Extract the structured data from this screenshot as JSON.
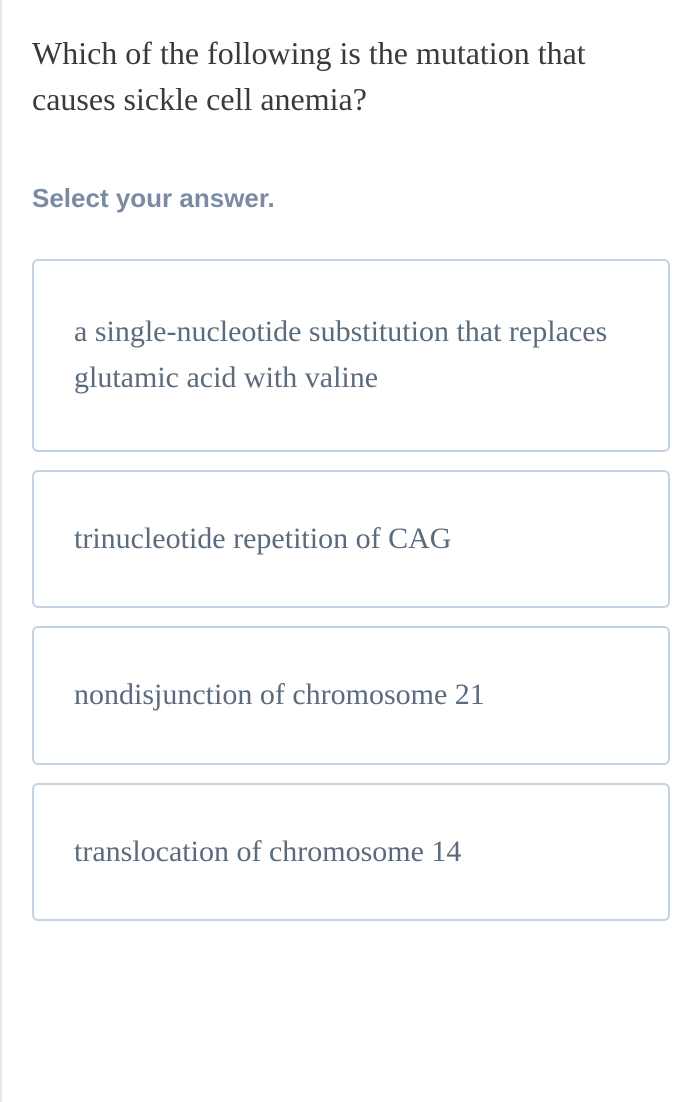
{
  "question": {
    "text": "Which of the following is the mutation that causes sickle cell anemia?",
    "text_color": "#3a3a3a",
    "font_size": 32
  },
  "instruction": {
    "text": "Select your answer.",
    "text_color": "#7a8ba3",
    "font_size": 26
  },
  "options": [
    {
      "text": "a single-nucleotide substitution that replaces glutamic acid with valine"
    },
    {
      "text": "trinucleotide repetition of CAG"
    },
    {
      "text": "nondisjunction of chromosome 21"
    },
    {
      "text": "translocation of chromosome 14"
    }
  ],
  "styling": {
    "option_border_color": "#c5d4e3",
    "option_text_color": "#5a6b7d",
    "option_border_radius": 6,
    "option_font_size": 30,
    "background_color": "#ffffff",
    "container_border_left_color": "#e8e8e8"
  }
}
